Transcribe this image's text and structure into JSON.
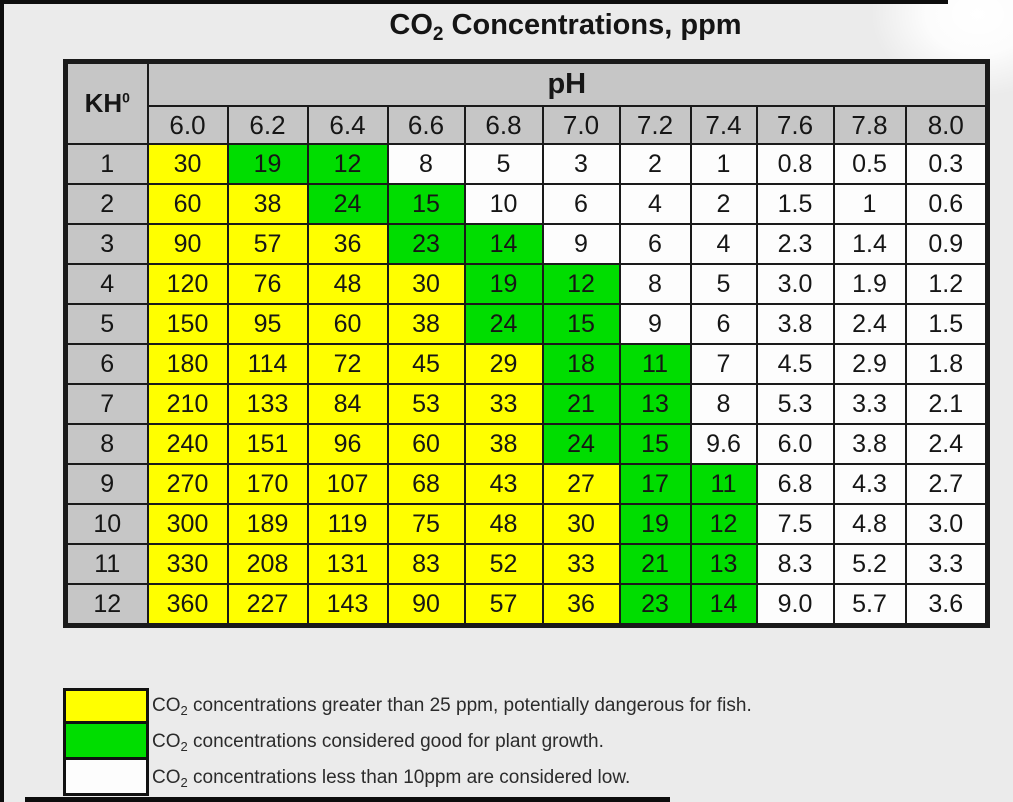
{
  "page": {
    "title_prefix": "CO",
    "title_sub": "2",
    "title_suffix": " Concentrations, ppm"
  },
  "colors": {
    "yellow": "#ffff00",
    "green": "#00dd00",
    "white": "#fdfdfd",
    "header-gray": "#c6c6c6",
    "grid-line": "#1a1a1a",
    "background": "#ebebeb"
  },
  "chart_data": {
    "type": "table",
    "title": "CO2 Concentrations, ppm",
    "column_group_label": "pH",
    "row_group_label": "KH",
    "row_group_label_sup": "0",
    "ph_columns": [
      "6.0",
      "6.2",
      "6.4",
      "6.6",
      "6.8",
      "7.0",
      "7.2",
      "7.4",
      "7.6",
      "7.8",
      "8.0"
    ],
    "kh_rows": [
      "1",
      "2",
      "3",
      "4",
      "5",
      "6",
      "7",
      "8",
      "9",
      "10",
      "11",
      "12"
    ],
    "values": [
      [
        "30",
        "19",
        "12",
        "8",
        "5",
        "3",
        "2",
        "1",
        "0.8",
        "0.5",
        "0.3"
      ],
      [
        "60",
        "38",
        "24",
        "15",
        "10",
        "6",
        "4",
        "2",
        "1.5",
        "1",
        "0.6"
      ],
      [
        "90",
        "57",
        "36",
        "23",
        "14",
        "9",
        "6",
        "4",
        "2.3",
        "1.4",
        "0.9"
      ],
      [
        "120",
        "76",
        "48",
        "30",
        "19",
        "12",
        "8",
        "5",
        "3.0",
        "1.9",
        "1.2"
      ],
      [
        "150",
        "95",
        "60",
        "38",
        "24",
        "15",
        "9",
        "6",
        "3.8",
        "2.4",
        "1.5"
      ],
      [
        "180",
        "114",
        "72",
        "45",
        "29",
        "18",
        "11",
        "7",
        "4.5",
        "2.9",
        "1.8"
      ],
      [
        "210",
        "133",
        "84",
        "53",
        "33",
        "21",
        "13",
        "8",
        "5.3",
        "3.3",
        "2.1"
      ],
      [
        "240",
        "151",
        "96",
        "60",
        "38",
        "24",
        "15",
        "9.6",
        "6.0",
        "3.8",
        "2.4"
      ],
      [
        "270",
        "170",
        "107",
        "68",
        "43",
        "27",
        "17",
        "11",
        "6.8",
        "4.3",
        "2.7"
      ],
      [
        "300",
        "189",
        "119",
        "75",
        "48",
        "30",
        "19",
        "12",
        "7.5",
        "4.8",
        "3.0"
      ],
      [
        "330",
        "208",
        "131",
        "83",
        "52",
        "33",
        "21",
        "13",
        "8.3",
        "5.2",
        "3.3"
      ],
      [
        "360",
        "227",
        "143",
        "90",
        "57",
        "36",
        "23",
        "14",
        "9.0",
        "5.7",
        "3.6"
      ]
    ],
    "cell_colors": [
      [
        "yellow",
        "green",
        "green",
        "white",
        "white",
        "white",
        "white",
        "white",
        "white",
        "white",
        "white"
      ],
      [
        "yellow",
        "yellow",
        "green",
        "green",
        "white",
        "white",
        "white",
        "white",
        "white",
        "white",
        "white"
      ],
      [
        "yellow",
        "yellow",
        "yellow",
        "green",
        "green",
        "white",
        "white",
        "white",
        "white",
        "white",
        "white"
      ],
      [
        "yellow",
        "yellow",
        "yellow",
        "yellow",
        "green",
        "green",
        "white",
        "white",
        "white",
        "white",
        "white"
      ],
      [
        "yellow",
        "yellow",
        "yellow",
        "yellow",
        "green",
        "green",
        "white",
        "white",
        "white",
        "white",
        "white"
      ],
      [
        "yellow",
        "yellow",
        "yellow",
        "yellow",
        "yellow",
        "green",
        "green",
        "white",
        "white",
        "white",
        "white"
      ],
      [
        "yellow",
        "yellow",
        "yellow",
        "yellow",
        "yellow",
        "green",
        "green",
        "white",
        "white",
        "white",
        "white"
      ],
      [
        "yellow",
        "yellow",
        "yellow",
        "yellow",
        "yellow",
        "green",
        "green",
        "white",
        "white",
        "white",
        "white"
      ],
      [
        "yellow",
        "yellow",
        "yellow",
        "yellow",
        "yellow",
        "yellow",
        "green",
        "green",
        "white",
        "white",
        "white"
      ],
      [
        "yellow",
        "yellow",
        "yellow",
        "yellow",
        "yellow",
        "yellow",
        "green",
        "green",
        "white",
        "white",
        "white"
      ],
      [
        "yellow",
        "yellow",
        "yellow",
        "yellow",
        "yellow",
        "yellow",
        "green",
        "green",
        "white",
        "white",
        "white"
      ],
      [
        "yellow",
        "yellow",
        "yellow",
        "yellow",
        "yellow",
        "yellow",
        "green",
        "green",
        "white",
        "white",
        "white"
      ]
    ]
  },
  "legend": {
    "items": [
      {
        "color_key": "yellow",
        "label_prefix": "CO",
        "label_sub": "2",
        "label_text": " concentrations greater than 25 ppm, potentially dangerous for fish."
      },
      {
        "color_key": "green",
        "label_prefix": "CO",
        "label_sub": "2",
        "label_text": " concentrations considered good for plant growth."
      },
      {
        "color_key": "white",
        "label_prefix": "CO",
        "label_sub": "2",
        "label_text": " concentrations less than 10ppm are considered low."
      }
    ]
  }
}
